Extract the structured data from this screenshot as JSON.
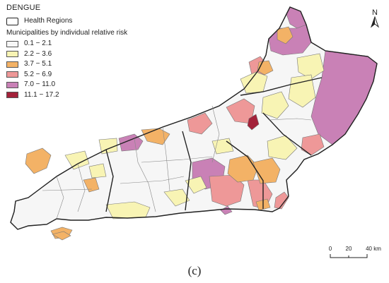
{
  "map": {
    "title": "DENGUE",
    "regions_label": "Health Regions",
    "legend_title": "Municipalities by  individual relative risk",
    "classes": [
      {
        "label": "0.1 − 2.1",
        "color": "#f6f6f6"
      },
      {
        "label": "2.2 − 3.6",
        "color": "#f8f4b4"
      },
      {
        "label": "3.7 − 5.1",
        "color": "#f3b266"
      },
      {
        "label": "5.2 − 6.9",
        "color": "#ee9898"
      },
      {
        "label": "7.0 − 11.0",
        "color": "#c981b6"
      },
      {
        "label": "11.1 − 17.2",
        "color": "#a3223a"
      }
    ],
    "north_label": "N",
    "scale": {
      "ticks": [
        "0",
        "20",
        "40 km"
      ]
    },
    "caption": "(c)"
  }
}
